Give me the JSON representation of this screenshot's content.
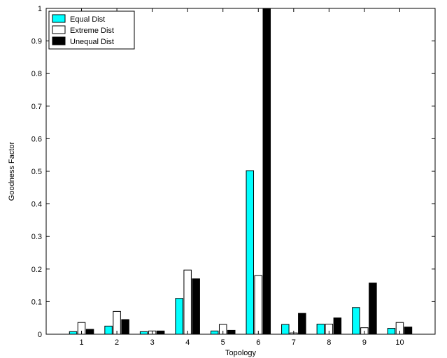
{
  "chart_data": {
    "type": "bar",
    "title": "",
    "xlabel": "Topology",
    "ylabel": "Goodness Factor",
    "categories": [
      "1",
      "2",
      "3",
      "4",
      "5",
      "6",
      "7",
      "8",
      "9",
      "10"
    ],
    "ylim": [
      0,
      1
    ],
    "yticks": [
      "0",
      "0.1",
      "0.2",
      "0.3",
      "0.4",
      "0.5",
      "0.6",
      "0.7",
      "0.8",
      "0.9",
      "1"
    ],
    "grid": false,
    "legend_position": "top-left",
    "series": [
      {
        "name": "Equal Dist",
        "color": "#00ffff",
        "values": [
          0.008,
          0.025,
          0.008,
          0.11,
          0.01,
          0.502,
          0.03,
          0.031,
          0.082,
          0.018
        ]
      },
      {
        "name": "Extreme Dist",
        "color": "#ffffff",
        "values": [
          0.036,
          0.07,
          0.01,
          0.197,
          0.03,
          0.18,
          0.004,
          0.031,
          0.02,
          0.036
        ]
      },
      {
        "name": "Unequal Dist",
        "color": "#000000",
        "values": [
          0.015,
          0.045,
          0.01,
          0.17,
          0.012,
          1.0,
          0.064,
          0.05,
          0.157,
          0.022
        ]
      }
    ]
  }
}
